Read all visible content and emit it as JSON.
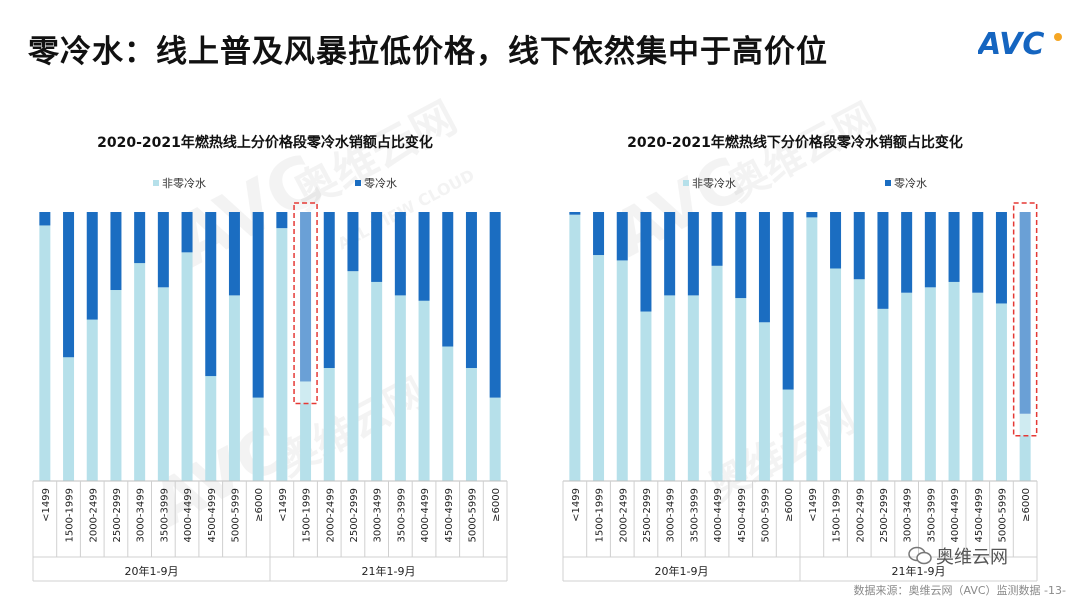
{
  "title": "零冷水：线上普及风暴拉低价格，线下依然集中于高价位",
  "brand": {
    "logo_text": "AVC",
    "color": "#1565c0"
  },
  "footer": {
    "source": "数据来源：奥维云网（AVC）监测数据 -13-",
    "wechat": "奥维云网"
  },
  "watermark": {
    "brand": "AVC",
    "chinese": "奥维云网",
    "sub": "ALL VIEW CLOUD"
  },
  "colors": {
    "non_zero": "#b6e0ea",
    "zero": "#1b6dc1",
    "highlight": "#e53935"
  },
  "chart_data": [
    {
      "type": "stacked-bar-100",
      "title": "2020-2021年燃热线上分价格段零冷水销额占比变化",
      "legend": [
        "非零冷水",
        "零冷水"
      ],
      "categories": [
        "<1499",
        "1500-1999",
        "2000-2499",
        "2500-2999",
        "3000-3499",
        "3500-3999",
        "4000-4499",
        "4500-4999",
        "5000-5999",
        "≥6000",
        "<1499",
        "1500-1999",
        "2000-2499",
        "2500-2999",
        "3000-3499",
        "3500-3999",
        "4000-4499",
        "4500-4999",
        "5000-5999",
        "≥6000"
      ],
      "groups": [
        {
          "label": "20年1-9月",
          "count": 10
        },
        {
          "label": "21年1-9月",
          "count": 10
        }
      ],
      "series": [
        {
          "name": "非零冷水",
          "values": [
            95,
            46,
            60,
            71,
            81,
            72,
            85,
            39,
            69,
            31,
            94,
            37,
            42,
            78,
            74,
            69,
            67,
            50,
            42,
            31
          ]
        },
        {
          "name": "零冷水",
          "values": [
            5,
            54,
            40,
            29,
            19,
            28,
            15,
            61,
            31,
            69,
            6,
            63,
            58,
            22,
            26,
            31,
            33,
            50,
            58,
            69
          ]
        }
      ],
      "highlight_index": 11,
      "ylim": [
        0,
        100
      ]
    },
    {
      "type": "stacked-bar-100",
      "title": "2020-2021年燃热线下分价格段零冷水销额占比变化",
      "legend": [
        "非零冷水",
        "零冷水"
      ],
      "categories": [
        "<1499",
        "1500-1999",
        "2000-2499",
        "2500-2999",
        "3000-3499",
        "3500-3999",
        "4000-4499",
        "4500-4999",
        "5000-5999",
        "≥6000",
        "<1499",
        "1500-1999",
        "2000-2499",
        "2500-2999",
        "3000-3499",
        "3500-3999",
        "4000-4499",
        "4500-4999",
        "5000-5999",
        "≥6000"
      ],
      "groups": [
        {
          "label": "20年1-9月",
          "count": 10
        },
        {
          "label": "21年1-9月",
          "count": 10
        }
      ],
      "series": [
        {
          "name": "非零冷水",
          "values": [
            99,
            84,
            82,
            63,
            69,
            69,
            80,
            68,
            59,
            34,
            98,
            79,
            75,
            64,
            70,
            72,
            74,
            70,
            66,
            25
          ]
        },
        {
          "name": "零冷水",
          "values": [
            1,
            16,
            18,
            37,
            31,
            31,
            20,
            32,
            41,
            66,
            2,
            21,
            25,
            36,
            30,
            28,
            26,
            30,
            34,
            75
          ]
        }
      ],
      "highlight_index": 19,
      "ylim": [
        0,
        100
      ]
    }
  ]
}
